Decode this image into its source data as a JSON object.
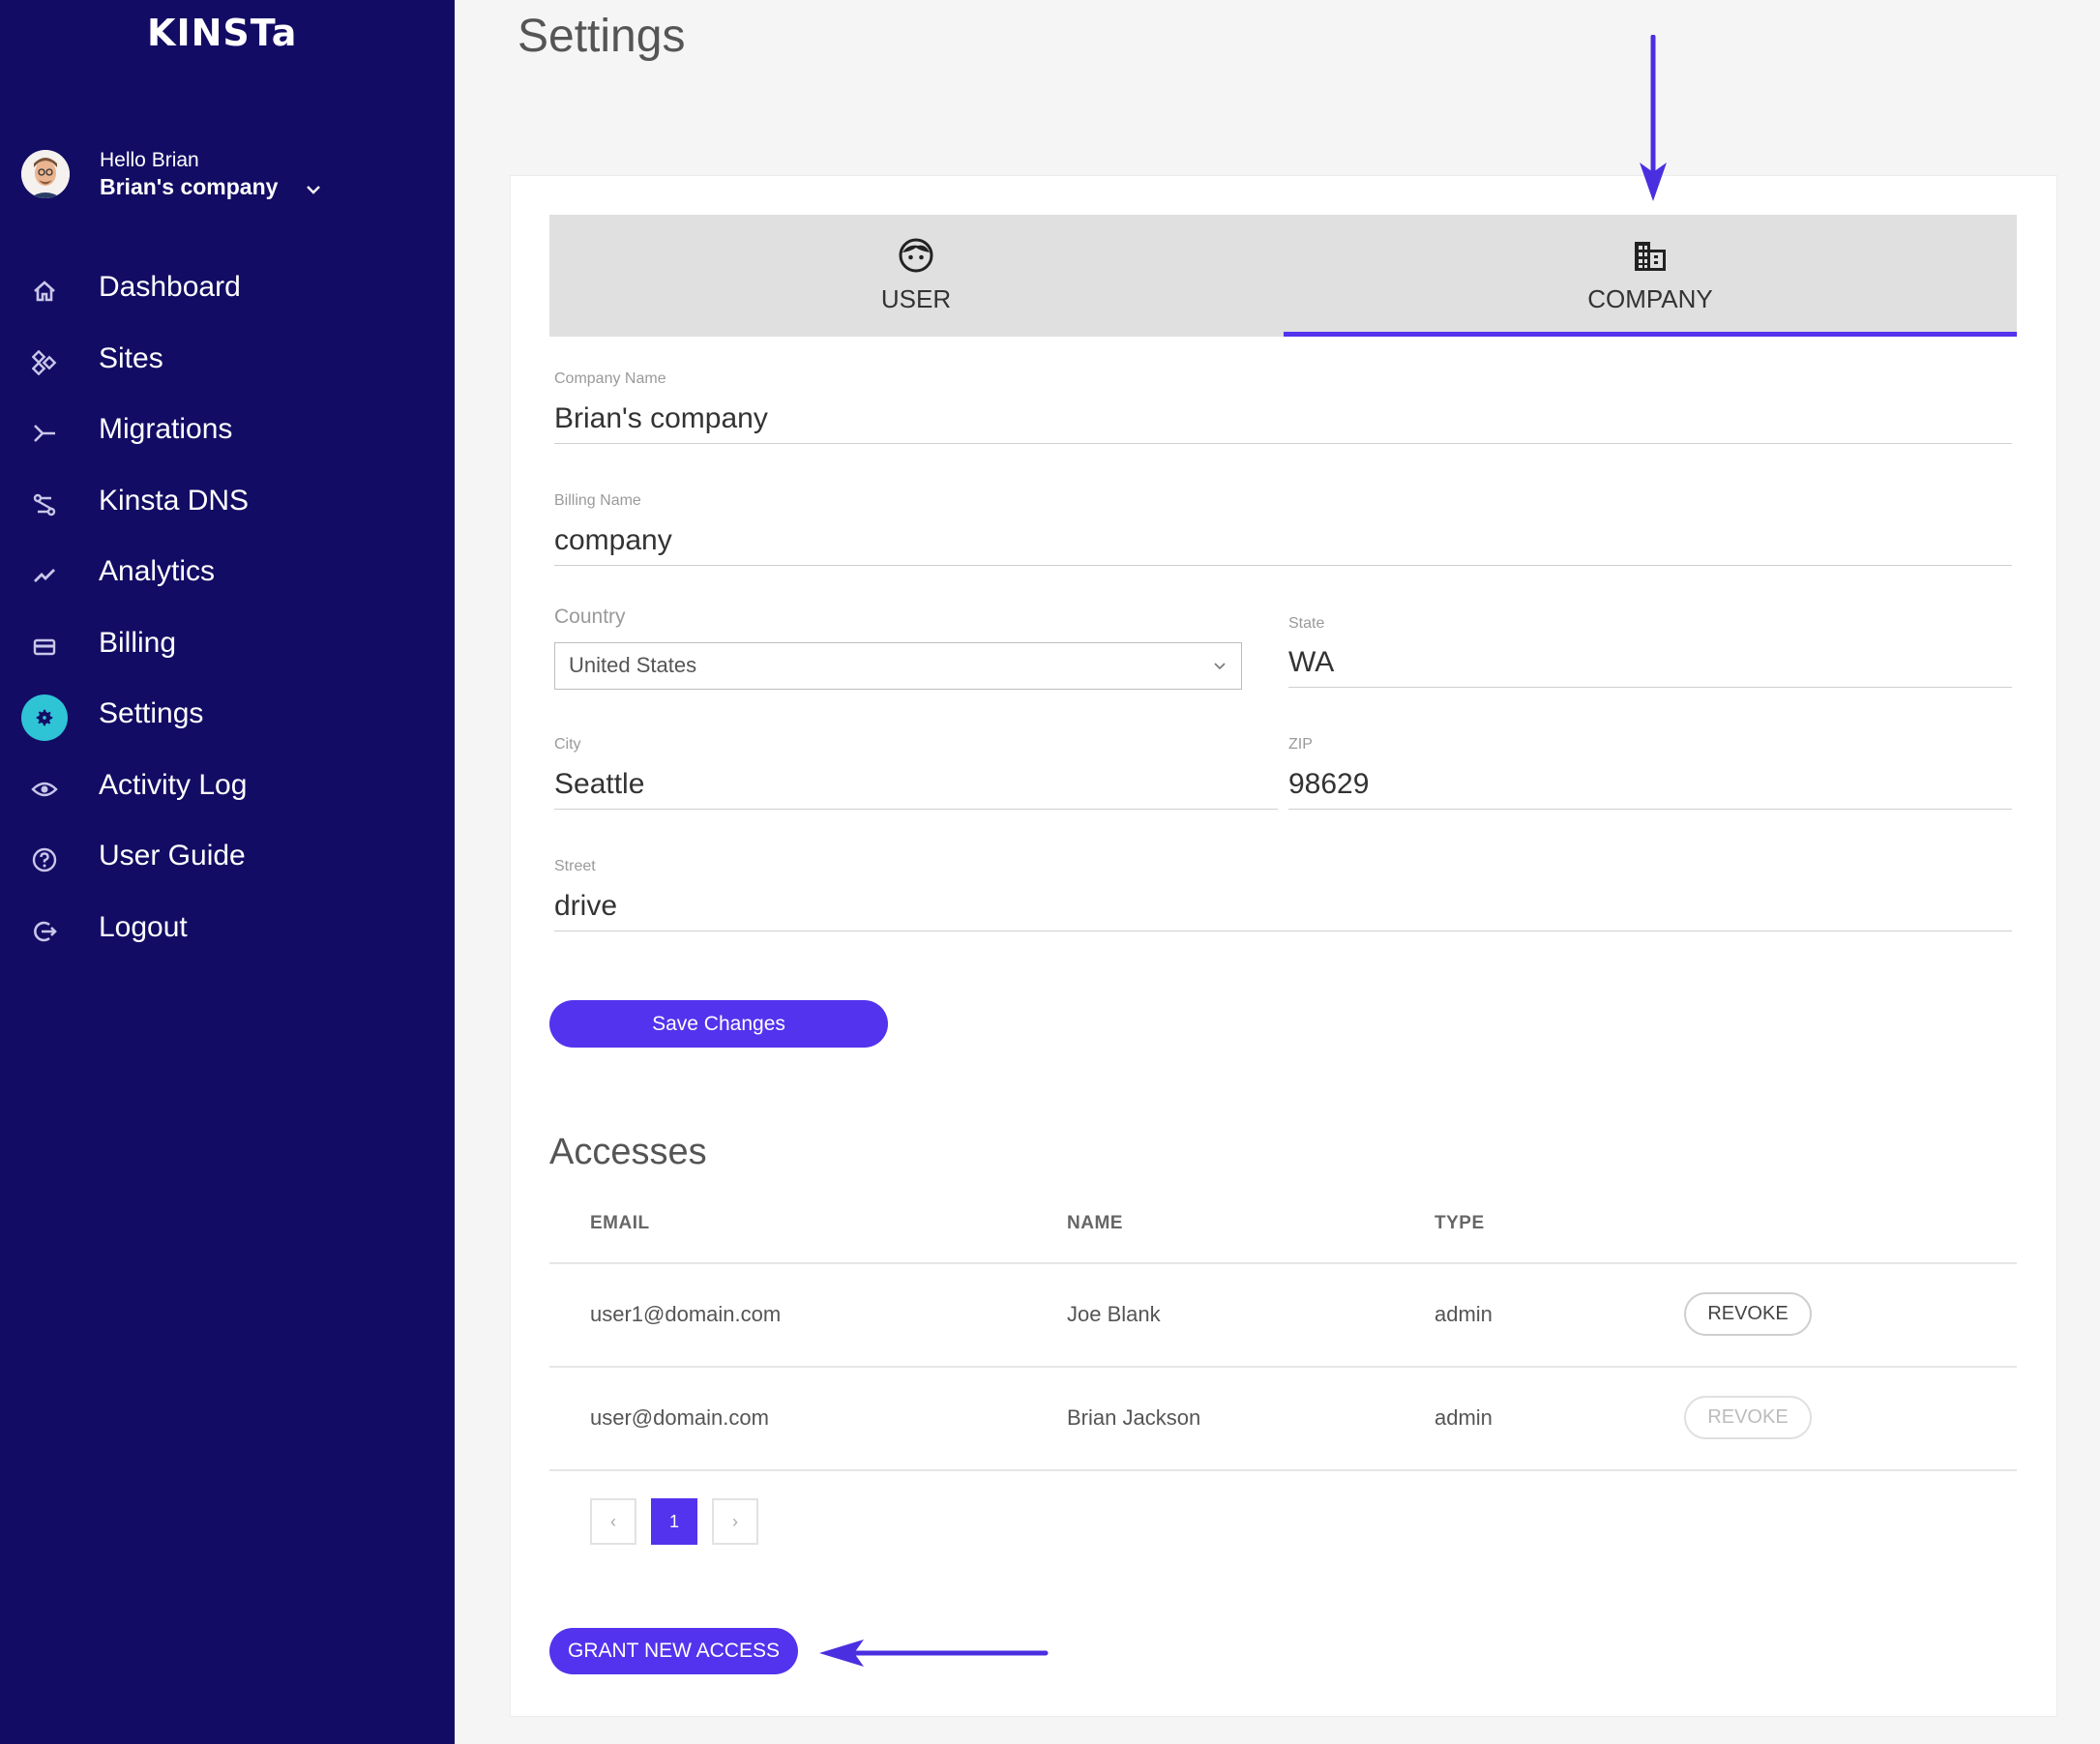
{
  "brand": {
    "logo_text": "KINSTa"
  },
  "account": {
    "greeting": "Hello Brian",
    "company": "Brian's company"
  },
  "nav": [
    {
      "label": "Dashboard",
      "icon": "home-icon"
    },
    {
      "label": "Sites",
      "icon": "sites-icon"
    },
    {
      "label": "Migrations",
      "icon": "migrations-icon"
    },
    {
      "label": "Kinsta DNS",
      "icon": "dns-icon"
    },
    {
      "label": "Analytics",
      "icon": "analytics-icon"
    },
    {
      "label": "Billing",
      "icon": "billing-icon"
    },
    {
      "label": "Settings",
      "icon": "gear-icon",
      "active": true
    },
    {
      "label": "Activity Log",
      "icon": "eye-icon"
    },
    {
      "label": "User Guide",
      "icon": "help-icon"
    },
    {
      "label": "Logout",
      "icon": "logout-icon"
    }
  ],
  "page": {
    "title": "Settings"
  },
  "tabs": {
    "user": "USER",
    "company": "COMPANY",
    "active": "company"
  },
  "form": {
    "company_name": {
      "label": "Company Name",
      "value": "Brian's company"
    },
    "billing_name": {
      "label": "Billing Name",
      "value": "company"
    },
    "country": {
      "label": "Country",
      "value": "United States"
    },
    "state": {
      "label": "State",
      "value": "WA"
    },
    "city": {
      "label": "City",
      "value": "Seattle"
    },
    "zip": {
      "label": "ZIP",
      "value": "98629"
    },
    "street": {
      "label": "Street",
      "value": "drive"
    },
    "save_label": "Save Changes"
  },
  "accesses": {
    "title": "Accesses",
    "columns": [
      "EMAIL",
      "NAME",
      "TYPE"
    ],
    "rows": [
      {
        "email": "user1@domain.com",
        "name": "Joe Blank",
        "type": "admin",
        "action": "REVOKE",
        "enabled": true
      },
      {
        "email": "user@domain.com",
        "name": "Brian Jackson",
        "type": "admin",
        "action": "REVOKE",
        "enabled": false
      }
    ],
    "pagination": {
      "prev": "‹",
      "current": "1",
      "next": "›"
    },
    "grant_label": "GRANT NEW ACCESS"
  },
  "colors": {
    "sidebar": "#130c64",
    "accent": "#5333ed",
    "active_icon": "#2ec4d6"
  }
}
